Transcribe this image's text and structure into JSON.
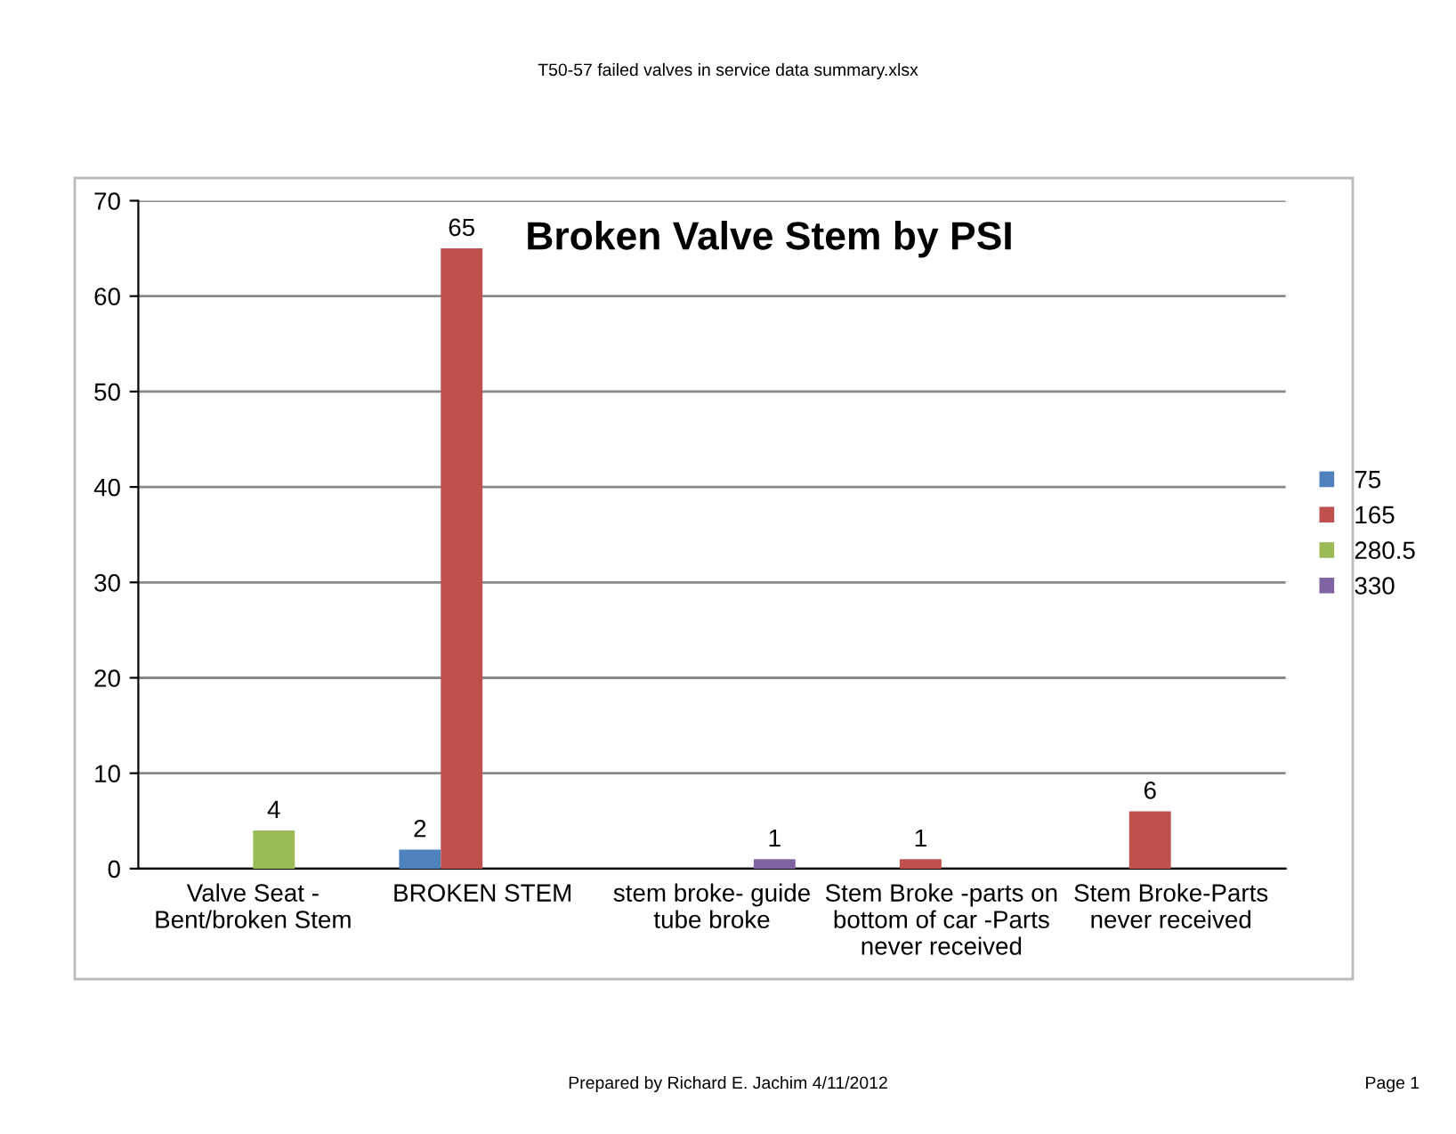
{
  "chart_data": {
    "type": "bar",
    "title": "Broken Valve Stem by PSI",
    "categories": [
      "Valve Seat -\nBent/broken Stem",
      "BROKEN STEM",
      "stem broke- guide\ntube broke",
      "Stem Broke -parts on\nbottom of car -Parts\nnever received",
      "Stem Broke-Parts\nnever received"
    ],
    "series": [
      {
        "name": "75",
        "color": "#4f81bd",
        "values": [
          null,
          2,
          null,
          null,
          null
        ]
      },
      {
        "name": "165",
        "color": "#c0504d",
        "values": [
          null,
          65,
          null,
          1,
          6
        ]
      },
      {
        "name": "280.5",
        "color": "#9bbb59",
        "values": [
          4,
          null,
          null,
          null,
          null
        ]
      },
      {
        "name": "330",
        "color": "#8064a2",
        "values": [
          null,
          null,
          1,
          null,
          null
        ]
      }
    ],
    "ylim": [
      0,
      70
    ],
    "yticks": [
      0,
      10,
      20,
      30,
      40,
      50,
      60,
      70
    ],
    "grid": "y",
    "legend": "right",
    "data_labels": true,
    "annotations": [
      "T50-57 failed valves in service data summary.xlsx",
      "Prepared by Richard E. Jachim 4/11/2012",
      "Page 1"
    ]
  }
}
